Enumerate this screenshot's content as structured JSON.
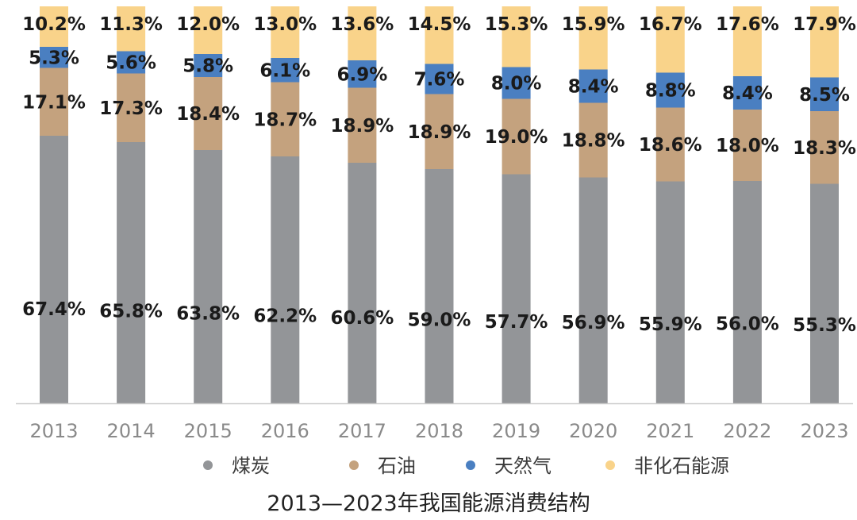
{
  "chart_data": {
    "type": "bar",
    "stacked": true,
    "title": "2013—2023年我国能源消费结构",
    "xlabel": "",
    "ylabel": "",
    "ylim": [
      0,
      100
    ],
    "grid": false,
    "legend_position": "bottom",
    "categories": [
      "2013",
      "2014",
      "2015",
      "2016",
      "2017",
      "2018",
      "2019",
      "2020",
      "2021",
      "2022",
      "2023"
    ],
    "series": [
      {
        "name": "煤炭",
        "color": "#939598",
        "values": [
          67.4,
          65.8,
          63.8,
          62.2,
          60.6,
          59.0,
          57.7,
          56.9,
          55.9,
          56.0,
          55.3
        ],
        "labels": [
          "67.4%",
          "65.8%",
          "63.8%",
          "62.2%",
          "60.6%",
          "59.0%",
          "57.7%",
          "56.9%",
          "55.9%",
          "56.0%",
          "55.3%"
        ]
      },
      {
        "name": "石油",
        "color": "#c4a27e",
        "values": [
          17.1,
          17.3,
          18.4,
          18.7,
          18.9,
          18.9,
          19.0,
          18.8,
          18.6,
          18.0,
          18.3
        ],
        "labels": [
          "17.1%",
          "17.3%",
          "18.4%",
          "18.7%",
          "18.9%",
          "18.9%",
          "19.0%",
          "18.8%",
          "18.6%",
          "18.0%",
          "18.3%"
        ]
      },
      {
        "name": "天然气",
        "color": "#4a7fc1",
        "values": [
          5.3,
          5.6,
          5.8,
          6.1,
          6.9,
          7.6,
          8.0,
          8.4,
          8.8,
          8.4,
          8.5
        ],
        "labels": [
          "5.3%",
          "5.6%",
          "5.8%",
          "6.1%",
          "6.9%",
          "7.6%",
          "8.0%",
          "8.4%",
          "8.8%",
          "8.4%",
          "8.5%"
        ]
      },
      {
        "name": "非化石能源",
        "color": "#f9d38a",
        "values": [
          10.2,
          11.3,
          12.0,
          13.0,
          13.6,
          14.5,
          15.3,
          15.9,
          16.7,
          17.6,
          17.9
        ],
        "labels": [
          "10.2%",
          "11.3%",
          "12.0%",
          "13.0%",
          "13.6%",
          "14.5%",
          "15.3%",
          "15.9%",
          "16.7%",
          "17.6%",
          "17.9%"
        ]
      }
    ]
  },
  "colors": {
    "axis": "#cccccc",
    "tick": "#8a8a8a",
    "label": "#1a1a1a"
  }
}
